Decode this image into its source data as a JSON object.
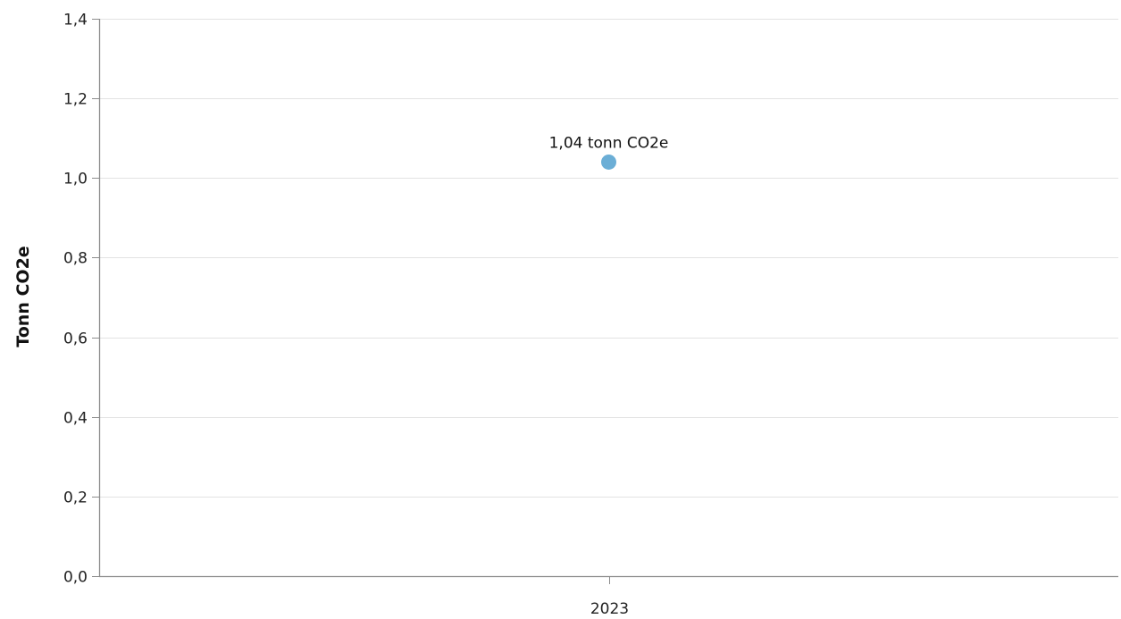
{
  "chart_data": {
    "type": "scatter",
    "title": "",
    "xlabel": "",
    "ylabel": "Tonn CO2e",
    "categories": [
      "2023"
    ],
    "series": [
      {
        "values": [
          1.04
        ],
        "data_labels": [
          "1,04 tonn CO2e"
        ],
        "color": "#6baed6"
      }
    ],
    "ylim": [
      0,
      1.4
    ],
    "yticks": [
      0,
      0.2,
      0.4,
      0.6,
      0.8,
      1.0,
      1.2,
      1.4
    ],
    "ytick_labels": [
      "0,0",
      "0,2",
      "0,4",
      "0,6",
      "0,8",
      "1,0",
      "1,2",
      "1,4"
    ],
    "grid": true,
    "legend": "none"
  }
}
